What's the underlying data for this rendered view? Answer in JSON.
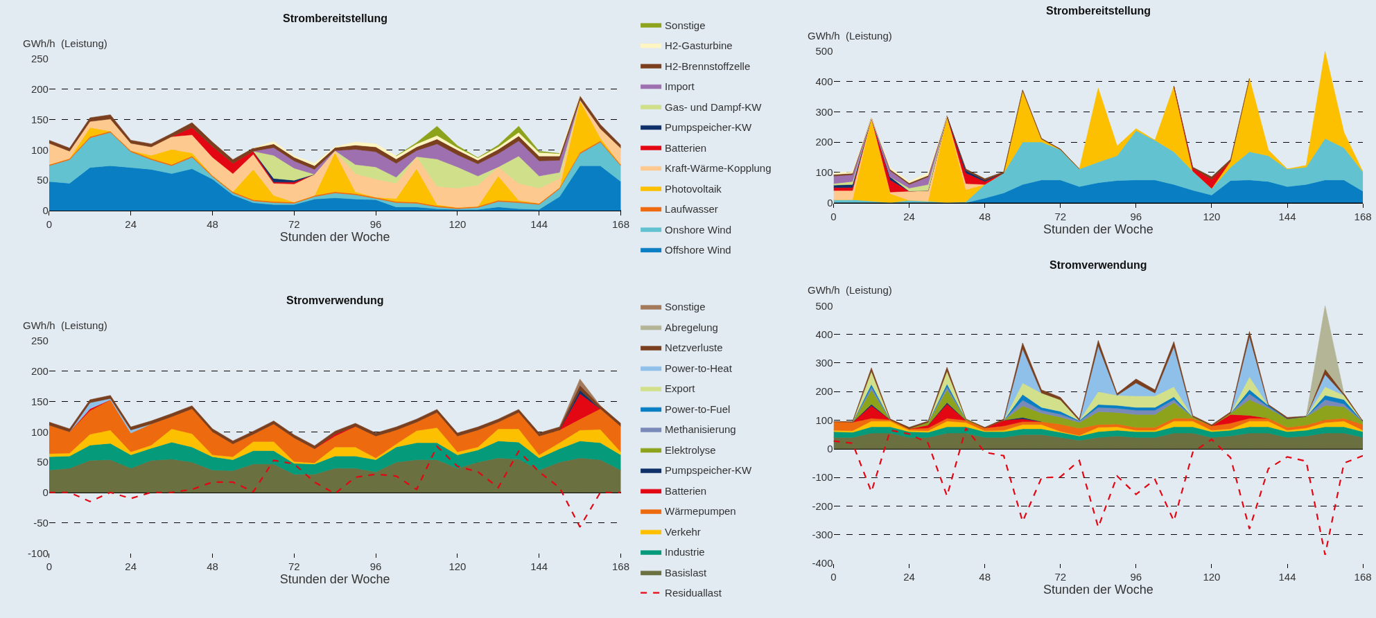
{
  "chart_data": [
    {
      "type": "area",
      "title": "Strombereitstellung",
      "ylabel": "GWh/h  (Leistung)",
      "xlabel": "Stunden der Woche",
      "stacked": true,
      "grid": "y",
      "legend": "right",
      "x": [
        0,
        6,
        12,
        18,
        24,
        30,
        36,
        42,
        48,
        54,
        60,
        66,
        72,
        78,
        84,
        90,
        96,
        102,
        108,
        114,
        120,
        126,
        132,
        138,
        144,
        150,
        156,
        162,
        168
      ],
      "xlim": [
        0,
        168
      ],
      "xticks": [
        0,
        24,
        48,
        72,
        96,
        120,
        144,
        168
      ],
      "ylim": [
        0,
        250
      ],
      "yticks": [
        0,
        50,
        100,
        150,
        200,
        250
      ],
      "series": [
        {
          "name": "Offshore Wind",
          "color": "#0a7ec2",
          "values": [
            48,
            45,
            71,
            74,
            71,
            68,
            61,
            69,
            52,
            26,
            13,
            10,
            10,
            19,
            21,
            19,
            18,
            6,
            6,
            3,
            2,
            2,
            6,
            3,
            2,
            23,
            74,
            74,
            48
          ]
        },
        {
          "name": "Onshore Wind",
          "color": "#62c2d0",
          "values": [
            26,
            39,
            49,
            55,
            26,
            16,
            13,
            19,
            4,
            3,
            3,
            3,
            2,
            4,
            8,
            7,
            2,
            7,
            6,
            3,
            1,
            3,
            9,
            10,
            8,
            13,
            20,
            39,
            26
          ]
        },
        {
          "name": "Laufwasser",
          "color": "#ee6a0f",
          "values": [
            2,
            2,
            2,
            2,
            2,
            2,
            2,
            2,
            2,
            2,
            2,
            2,
            2,
            2,
            2,
            2,
            2,
            2,
            2,
            2,
            2,
            2,
            2,
            2,
            2,
            2,
            2,
            2,
            2
          ]
        },
        {
          "name": "Photovoltaik",
          "color": "#fcc000",
          "values": [
            0,
            0,
            15,
            0,
            0,
            5,
            25,
            5,
            0,
            0,
            50,
            10,
            0,
            0,
            65,
            3,
            0,
            5,
            55,
            2,
            0,
            0,
            40,
            2,
            0,
            0,
            85,
            5,
            0
          ]
        },
        {
          "name": "Kraft-Wärme-Kopplung",
          "color": "#fdc98f",
          "values": [
            35,
            12,
            10,
            20,
            12,
            14,
            21,
            30,
            30,
            30,
            25,
            20,
            30,
            35,
            3,
            30,
            30,
            25,
            20,
            30,
            32,
            35,
            15,
            28,
            25,
            15,
            2,
            15,
            27
          ]
        },
        {
          "name": "Batterien",
          "color": "#e30613",
          "values": [
            null,
            null,
            null,
            null,
            null,
            null,
            0,
            12,
            18,
            17,
            5,
            2,
            3,
            0,
            null,
            null,
            null,
            null,
            null,
            null,
            null,
            null,
            null,
            null,
            null,
            null,
            null,
            null,
            null
          ]
        },
        {
          "name": "Pumpspeicher-KW",
          "color": "#0f3068",
          "values": [
            null,
            null,
            null,
            null,
            null,
            null,
            null,
            null,
            null,
            null,
            0,
            6,
            3,
            0,
            null,
            null,
            null,
            null,
            null,
            null,
            null,
            null,
            null,
            null,
            null,
            null,
            null,
            null,
            null
          ]
        },
        {
          "name": "Gas- und Dampf-KW",
          "color": "#cfdf8a",
          "values": [
            null,
            null,
            null,
            null,
            null,
            null,
            null,
            null,
            null,
            null,
            0,
            38,
            20,
            0,
            0,
            15,
            20,
            10,
            0,
            45,
            35,
            15,
            0,
            45,
            20,
            10,
            0,
            null,
            null
          ]
        },
        {
          "name": "Import",
          "color": "#9e70b0",
          "values": [
            null,
            null,
            null,
            null,
            null,
            null,
            null,
            null,
            null,
            null,
            0,
            13,
            12,
            8,
            0,
            25,
            25,
            23,
            10,
            25,
            20,
            20,
            22,
            25,
            25,
            20,
            0,
            null,
            null
          ]
        },
        {
          "name": "H2-Brennstoffzelle",
          "color": "#7a3f1e",
          "values": [
            5,
            5,
            6,
            7,
            5,
            5,
            5,
            8,
            7,
            6,
            5,
            6,
            6,
            6,
            5,
            7,
            8,
            7,
            6,
            8,
            8,
            6,
            7,
            8,
            8,
            7,
            6,
            7,
            5
          ]
        },
        {
          "name": "H2-Gasturbine",
          "color": "#fff5c0",
          "values": [
            null,
            null,
            null,
            null,
            null,
            null,
            null,
            null,
            null,
            null,
            0,
            4,
            2,
            4,
            1,
            5,
            5,
            5,
            5,
            6,
            4,
            4,
            4,
            6,
            6,
            4,
            0,
            null,
            null
          ]
        },
        {
          "name": "Sonstige",
          "color": "#8da31b",
          "values": [
            null,
            null,
            null,
            null,
            null,
            null,
            null,
            null,
            null,
            null,
            null,
            null,
            null,
            null,
            null,
            null,
            null,
            0,
            2,
            15,
            3,
            0,
            3,
            10,
            2,
            0,
            null,
            null,
            null
          ]
        }
      ]
    },
    {
      "type": "area",
      "title": "Strombereitstellung",
      "ylabel": "GWh/h  (Leistung)",
      "xlabel": "Stunden der Woche",
      "stacked": true,
      "grid": "y",
      "legend": "left",
      "x": [
        0,
        6,
        12,
        18,
        24,
        30,
        36,
        42,
        48,
        54,
        60,
        66,
        72,
        78,
        84,
        90,
        96,
        102,
        108,
        114,
        120,
        126,
        132,
        138,
        144,
        150,
        156,
        162,
        168
      ],
      "xlim": [
        0,
        168
      ],
      "xticks": [
        0,
        24,
        48,
        72,
        96,
        120,
        144,
        168
      ],
      "ylim": [
        0,
        500
      ],
      "yticks": [
        0,
        100,
        200,
        300,
        400,
        500
      ],
      "series": [
        {
          "name": "Offshore Wind",
          "color": "#0a7ec2",
          "values": [
            null,
            null,
            null,
            null,
            null,
            null,
            null,
            0,
            15,
            32,
            60,
            75,
            75,
            53,
            66,
            73,
            75,
            75,
            60,
            41,
            25,
            73,
            75,
            70,
            53,
            60,
            75,
            75,
            38
          ]
        },
        {
          "name": "Onshore Wind",
          "color": "#62c2d0",
          "values": [
            10,
            10,
            5,
            0,
            8,
            5,
            0,
            3,
            45,
            66,
            140,
            125,
            100,
            58,
            68,
            82,
            163,
            131,
            108,
            63,
            22,
            44,
            93,
            85,
            58,
            57,
            137,
            106,
            64
          ]
        },
        {
          "name": "Photovoltaik",
          "color": "#fcc000",
          "values": [
            0,
            0,
            275,
            30,
            0,
            0,
            285,
            40,
            0,
            0,
            170,
            10,
            0,
            0,
            244,
            32,
            6,
            0,
            216,
            0,
            0,
            20,
            242,
            19,
            0,
            6,
            287,
            51,
            0
          ]
        },
        {
          "name": "Kraft-Wärme-Kopplung",
          "color": "#fdc98f",
          "values": [
            30,
            30,
            0,
            5,
            30,
            35,
            0,
            20,
            0,
            null,
            null,
            null,
            null,
            null,
            null,
            null,
            null,
            null,
            null,
            null,
            null,
            null,
            null,
            null,
            null,
            null,
            null,
            null,
            null
          ]
        },
        {
          "name": "Batterien",
          "color": "#e30613",
          "values": [
            10,
            10,
            0,
            40,
            0,
            0,
            0,
            35,
            10,
            0,
            null,
            null,
            null,
            null,
            null,
            null,
            null,
            null,
            0,
            10,
            30,
            0,
            null,
            null,
            null,
            null,
            null,
            null,
            null
          ]
        },
        {
          "name": "Pumpspeicher-KW",
          "color": "#0f3068",
          "values": [
            8,
            10,
            0,
            10,
            0,
            0,
            0,
            8,
            4,
            0,
            null,
            null,
            null,
            null,
            null,
            null,
            null,
            null,
            null,
            null,
            null,
            null,
            null,
            null,
            null,
            null,
            null,
            null,
            null
          ]
        },
        {
          "name": "Gas- und Dampf-KW",
          "color": "#cfdf8a",
          "values": [
            5,
            10,
            0,
            0,
            10,
            20,
            0,
            null,
            null,
            null,
            null,
            null,
            null,
            null,
            null,
            null,
            null,
            null,
            null,
            null,
            null,
            null,
            null,
            null,
            null,
            null,
            null,
            null,
            null
          ]
        },
        {
          "name": "Import",
          "color": "#9e70b0",
          "values": [
            25,
            22,
            0,
            20,
            12,
            25,
            0,
            null,
            null,
            null,
            null,
            null,
            null,
            null,
            null,
            null,
            null,
            null,
            null,
            null,
            null,
            null,
            null,
            null,
            null,
            null,
            null,
            null,
            null
          ]
        },
        {
          "name": "H2-Brennstoffzelle",
          "color": "#7a3f1e",
          "values": [
            5,
            5,
            0,
            5,
            5,
            5,
            0,
            5,
            5,
            4,
            2,
            2,
            2,
            0,
            null,
            null,
            null,
            null,
            0,
            3,
            8,
            6,
            0,
            null,
            null,
            null,
            null,
            null,
            null
          ]
        },
        {
          "name": "H2-Gasturbine",
          "color": "#fff5c0",
          "values": [
            5,
            5,
            0,
            6,
            5,
            8,
            0,
            null,
            null,
            null,
            null,
            null,
            null,
            null,
            null,
            null,
            null,
            null,
            null,
            null,
            null,
            null,
            null,
            null,
            null,
            null,
            null,
            null,
            null
          ]
        }
      ]
    },
    {
      "type": "area",
      "title": "Stromverwendung",
      "ylabel": "GWh/h  (Leistung)",
      "xlabel": "Stunden der Woche",
      "stacked": true,
      "grid": "y",
      "legend": "right",
      "x": [
        0,
        6,
        12,
        18,
        24,
        30,
        36,
        42,
        48,
        54,
        60,
        66,
        72,
        78,
        84,
        90,
        96,
        102,
        108,
        114,
        120,
        126,
        132,
        138,
        144,
        150,
        156,
        162,
        168
      ],
      "xlim": [
        0,
        168
      ],
      "xticks": [
        0,
        24,
        48,
        72,
        96,
        120,
        144,
        168
      ],
      "ylim": [
        -100,
        250
      ],
      "yticks": [
        -100,
        -50,
        0,
        50,
        100,
        150,
        200,
        250
      ],
      "series": [
        {
          "name": "Residuallast",
          "color": "#e30613",
          "type": "line",
          "line_style": "dashed",
          "values": [
            0,
            0,
            -15,
            0,
            -10,
            0,
            0,
            5,
            17,
            17,
            1,
            53,
            47,
            17,
            -2,
            25,
            30,
            27,
            5,
            76,
            43,
            34,
            8,
            68,
            34,
            8,
            -57,
            0,
            0
          ]
        },
        {
          "name": "Basislast",
          "color": "#6b7040",
          "values": [
            37,
            40,
            53,
            54,
            40,
            53,
            55,
            50,
            37,
            36,
            47,
            47,
            30,
            30,
            40,
            40,
            34,
            50,
            54,
            54,
            40,
            50,
            57,
            55,
            37,
            50,
            57,
            54,
            37
          ]
        },
        {
          "name": "Industrie",
          "color": "#049a7a",
          "values": [
            22,
            20,
            25,
            27,
            22,
            20,
            28,
            25,
            22,
            18,
            22,
            22,
            18,
            17,
            20,
            20,
            20,
            25,
            28,
            28,
            22,
            20,
            28,
            28,
            20,
            22,
            28,
            28,
            25
          ]
        },
        {
          "name": "Verkehr",
          "color": "#fcc000",
          "values": [
            5,
            5,
            18,
            22,
            5,
            5,
            22,
            22,
            3,
            5,
            15,
            15,
            3,
            2,
            15,
            15,
            3,
            5,
            20,
            25,
            5,
            5,
            20,
            22,
            5,
            10,
            18,
            22,
            5
          ]
        },
        {
          "name": "Wärmepumpen",
          "color": "#ee6a0f",
          "values": [
            47,
            35,
            39,
            50,
            31,
            35,
            20,
            41,
            38,
            21,
            12,
            29,
            39,
            23,
            18,
            34,
            36,
            23,
            14,
            25,
            26,
            28,
            11,
            27,
            31,
            21,
            18,
            34,
            42
          ]
        },
        {
          "name": "Batterien",
          "color": "#e30613",
          "values": [
            null,
            0,
            3,
            0,
            null,
            null,
            null,
            null,
            null,
            null,
            null,
            null,
            null,
            0,
            3,
            0,
            null,
            null,
            null,
            null,
            null,
            null,
            null,
            null,
            null,
            0,
            42,
            0,
            null
          ]
        },
        {
          "name": "Pumpspeicher-KW",
          "color": "#0f3068",
          "values": [
            null,
            null,
            null,
            null,
            null,
            null,
            null,
            null,
            null,
            null,
            null,
            null,
            null,
            null,
            null,
            null,
            null,
            null,
            null,
            null,
            null,
            null,
            null,
            null,
            null,
            0,
            6,
            0,
            null
          ]
        },
        {
          "name": "Power-to-Heat",
          "color": "#8fc0ea",
          "values": [
            null,
            0,
            10,
            2,
            5,
            0,
            null,
            null,
            null,
            null,
            null,
            null,
            null,
            null,
            null,
            null,
            null,
            null,
            null,
            null,
            null,
            null,
            null,
            null,
            null,
            null,
            null,
            null,
            null
          ]
        },
        {
          "name": "Netzverluste",
          "color": "#7a3f1e",
          "values": [
            5,
            5,
            5,
            5,
            5,
            5,
            5,
            5,
            5,
            5,
            5,
            5,
            5,
            5,
            5,
            5,
            5,
            5,
            5,
            5,
            5,
            5,
            5,
            5,
            5,
            5,
            8,
            5,
            5
          ]
        },
        {
          "name": "Sonstige",
          "color": "#a47a5c",
          "values": [
            null,
            null,
            null,
            null,
            null,
            null,
            null,
            null,
            null,
            null,
            null,
            null,
            null,
            null,
            null,
            null,
            null,
            null,
            null,
            null,
            null,
            null,
            null,
            null,
            null,
            0,
            10,
            0,
            null
          ]
        }
      ]
    },
    {
      "type": "area",
      "title": "Stromverwendung",
      "ylabel": "GWh/h  (Leistung)",
      "xlabel": "Stunden der Woche",
      "stacked": true,
      "grid": "y",
      "legend": "left",
      "x": [
        0,
        6,
        12,
        18,
        24,
        30,
        36,
        42,
        48,
        54,
        60,
        66,
        72,
        78,
        84,
        90,
        96,
        102,
        108,
        114,
        120,
        126,
        132,
        138,
        144,
        150,
        156,
        162,
        168
      ],
      "xlim": [
        0,
        168
      ],
      "xticks": [
        0,
        24,
        48,
        72,
        96,
        120,
        144,
        168
      ],
      "ylim": [
        -400,
        500
      ],
      "yticks": [
        -400,
        -300,
        -200,
        -100,
        0,
        100,
        200,
        300,
        400,
        500
      ],
      "series": [
        {
          "name": "Residuallast",
          "color": "#e30613",
          "type": "line",
          "line_style": "dashed",
          "values": [
            27,
            20,
            -150,
            65,
            52,
            20,
            -165,
            72,
            -12,
            -24,
            -254,
            -101,
            -98,
            -41,
            -274,
            -95,
            -159,
            -107,
            -252,
            -12,
            33,
            -31,
            -280,
            -69,
            -28,
            -43,
            -370,
            -50,
            -24
          ]
        },
        {
          "name": "Basislast",
          "color": "#6b7040",
          "values": [
            40,
            40,
            55,
            55,
            40,
            40,
            55,
            55,
            40,
            40,
            50,
            50,
            40,
            30,
            40,
            45,
            40,
            40,
            55,
            55,
            40,
            45,
            55,
            55,
            40,
            45,
            55,
            55,
            40
          ]
        },
        {
          "name": "Industrie",
          "color": "#049a7a",
          "values": [
            20,
            18,
            22,
            22,
            20,
            18,
            22,
            22,
            20,
            20,
            20,
            20,
            18,
            15,
            20,
            20,
            20,
            20,
            22,
            22,
            20,
            20,
            22,
            22,
            20,
            20,
            22,
            22,
            20
          ]
        },
        {
          "name": "Verkehr",
          "color": "#fcc000",
          "values": [
            5,
            5,
            20,
            20,
            5,
            5,
            20,
            15,
            3,
            5,
            15,
            15,
            3,
            2,
            15,
            12,
            5,
            5,
            20,
            20,
            5,
            5,
            20,
            20,
            5,
            8,
            15,
            20,
            5
          ]
        },
        {
          "name": "Wärmepumpen",
          "color": "#ee6a0f",
          "values": [
            30,
            30,
            10,
            5,
            5,
            10,
            10,
            8,
            10,
            15,
            10,
            10,
            25,
            25,
            10,
            10,
            10,
            10,
            10,
            10,
            15,
            20,
            10,
            10,
            10,
            10,
            10,
            10,
            20
          ]
        },
        {
          "name": "Batterien",
          "color": "#e30613",
          "values": [
            null,
            0,
            44,
            0,
            0,
            10,
            50,
            0,
            0,
            20,
            10,
            0,
            null,
            null,
            null,
            null,
            null,
            null,
            null,
            null,
            0,
            30,
            10,
            0,
            null,
            null,
            null,
            null,
            null
          ]
        },
        {
          "name": "Pumpspeicher-KW",
          "color": "#0f3068",
          "values": [
            null,
            0,
            5,
            0,
            null,
            0,
            5,
            0,
            null,
            0,
            5,
            0,
            null,
            null,
            null,
            null,
            null,
            null,
            null,
            null,
            null,
            null,
            null,
            null,
            null,
            null,
            null,
            null,
            null
          ]
        },
        {
          "name": "Elektrolyse",
          "color": "#8da31b",
          "values": [
            null,
            0,
            50,
            0,
            0,
            10,
            45,
            4,
            0,
            0,
            40,
            30,
            25,
            20,
            45,
            40,
            45,
            45,
            55,
            5,
            0,
            5,
            55,
            35,
            30,
            30,
            50,
            40,
            10
          ]
        },
        {
          "name": "Methanisierung",
          "color": "#7a8ab8",
          "values": [
            null,
            0,
            10,
            0,
            null,
            0,
            10,
            0,
            null,
            0,
            20,
            10,
            10,
            5,
            15,
            15,
            15,
            15,
            10,
            0,
            null,
            0,
            20,
            5,
            0,
            0,
            20,
            10,
            0
          ]
        },
        {
          "name": "Power-to-Fuel",
          "color": "#0a7ec2",
          "values": [
            null,
            0,
            10,
            0,
            null,
            0,
            10,
            0,
            null,
            0,
            20,
            10,
            10,
            2,
            10,
            10,
            10,
            10,
            10,
            0,
            null,
            0,
            15,
            5,
            0,
            0,
            15,
            15,
            0
          ]
        },
        {
          "name": "Export",
          "color": "#d2e08c",
          "values": [
            null,
            0,
            45,
            0,
            null,
            0,
            45,
            0,
            null,
            0,
            40,
            50,
            40,
            0,
            45,
            35,
            40,
            40,
            35,
            0,
            null,
            0,
            45,
            0,
            null,
            0,
            30,
            15,
            0
          ]
        },
        {
          "name": "Power-to-Heat",
          "color": "#8fc0ea",
          "values": [
            null,
            null,
            null,
            null,
            null,
            null,
            null,
            null,
            null,
            0,
            120,
            0,
            null,
            0,
            160,
            0,
            45,
            10,
            140,
            0,
            null,
            0,
            140,
            0,
            null,
            0,
            43,
            0,
            null
          ]
        },
        {
          "name": "Netzverluste",
          "color": "#7a3f1e",
          "values": [
            0,
            2,
            12,
            2,
            5,
            4,
            13,
            0,
            2,
            4,
            20,
            11,
            9,
            5,
            19,
            6,
            14,
            11,
            18,
            4,
            4,
            4,
            18,
            3,
            5,
            1,
            20,
            6,
            2
          ]
        },
        {
          "name": "Abregelung",
          "color": "#b3b596",
          "values": [
            null,
            null,
            null,
            null,
            null,
            null,
            null,
            null,
            null,
            null,
            null,
            null,
            null,
            null,
            null,
            null,
            null,
            null,
            null,
            null,
            null,
            null,
            null,
            null,
            null,
            0,
            220,
            0,
            null
          ]
        }
      ]
    }
  ]
}
